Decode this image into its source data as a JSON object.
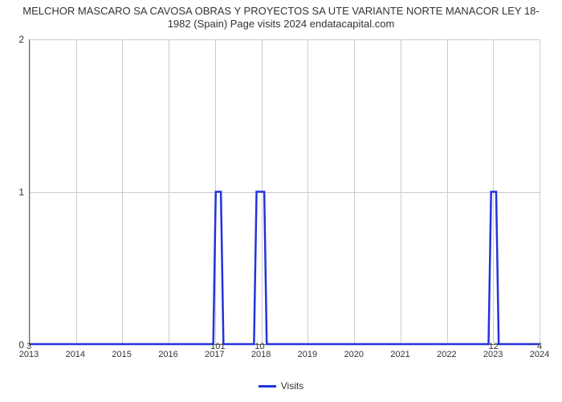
{
  "title_line1": "MELCHOR MASCARO SA CAVOSA OBRAS Y PROYECTOS SA UTE VARIANTE NORTE MANACOR LEY 18-",
  "title_line2": "1982 (Spain) Page visits 2024 endatacapital.com",
  "chart": {
    "type": "line",
    "series_color": "#2233dd",
    "series_width": 2.5,
    "grid_color": "#cccccc",
    "axis_color": "#666666",
    "background_color": "#ffffff",
    "ylim": [
      0,
      2
    ],
    "yticks": [
      0,
      1,
      2
    ],
    "xticks": [
      "2013",
      "2014",
      "2015",
      "2016",
      "2017",
      "2018",
      "2019",
      "2020",
      "2021",
      "2022",
      "2023",
      "2024"
    ],
    "bottom_labels": {
      "left_value": "3",
      "mid1_value": "101",
      "mid2_value": "10",
      "right1_value": "12",
      "right2_value": "4"
    },
    "data": [
      {
        "x": 0.0,
        "y": 0
      },
      {
        "x": 0.36,
        "y": 0
      },
      {
        "x": 0.365,
        "y": 1
      },
      {
        "x": 0.375,
        "y": 1
      },
      {
        "x": 0.38,
        "y": 0
      },
      {
        "x": 0.44,
        "y": 0
      },
      {
        "x": 0.445,
        "y": 1
      },
      {
        "x": 0.46,
        "y": 1
      },
      {
        "x": 0.465,
        "y": 0
      },
      {
        "x": 0.9,
        "y": 0
      },
      {
        "x": 0.905,
        "y": 1
      },
      {
        "x": 0.915,
        "y": 1
      },
      {
        "x": 0.92,
        "y": 0
      },
      {
        "x": 1.0,
        "y": 0
      }
    ],
    "legend_label": "Visits"
  }
}
